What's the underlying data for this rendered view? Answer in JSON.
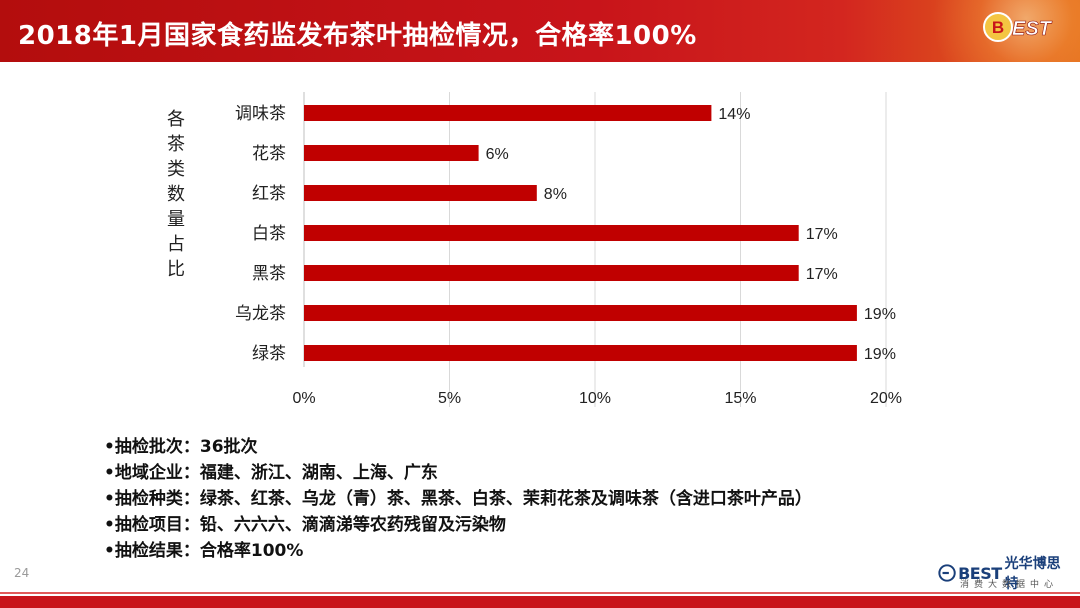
{
  "header": {
    "title": "2018年1月国家食药监发布茶叶抽检情况，合格率100%",
    "logo_text": "BEST"
  },
  "chart_data": {
    "type": "bar",
    "orientation": "horizontal",
    "categories": [
      "调味茶",
      "花茶",
      "红茶",
      "白茶",
      "黑茶",
      "乌龙茶",
      "绿茶"
    ],
    "values": [
      14,
      6,
      8,
      17,
      17,
      19,
      19
    ],
    "value_labels": [
      "14%",
      "6%",
      "8%",
      "17%",
      "17%",
      "19%",
      "19%"
    ],
    "ylabel": "各茶类数量占比",
    "xlabel": "",
    "xlim": [
      0,
      20
    ],
    "xticks": [
      "0%",
      "5%",
      "10%",
      "15%",
      "20%"
    ],
    "grid": true,
    "legend": "none",
    "bar_color": "#c00000"
  },
  "bullets": [
    "•抽检批次：36批次",
    "•地域企业：福建、浙江、湖南、上海、广东",
    "•抽检种类：绿茶、红茶、乌龙（青）茶、黑茶、白茶、茉莉花茶及调味茶（含进口茶叶产品）",
    "•抽检项目：铅、六六六、滴滴涕等农药残留及污染物",
    "•抽检结果：合格率100%"
  ],
  "footer": {
    "page_number": "24",
    "brand_best": "BEST",
    "brand_cn": "光华博思特",
    "brand_sub": "消费大数据中心"
  },
  "colors": {
    "header_red": "#c8141a",
    "bar_red": "#c00000",
    "brand_blue": "#1a3f7a"
  }
}
